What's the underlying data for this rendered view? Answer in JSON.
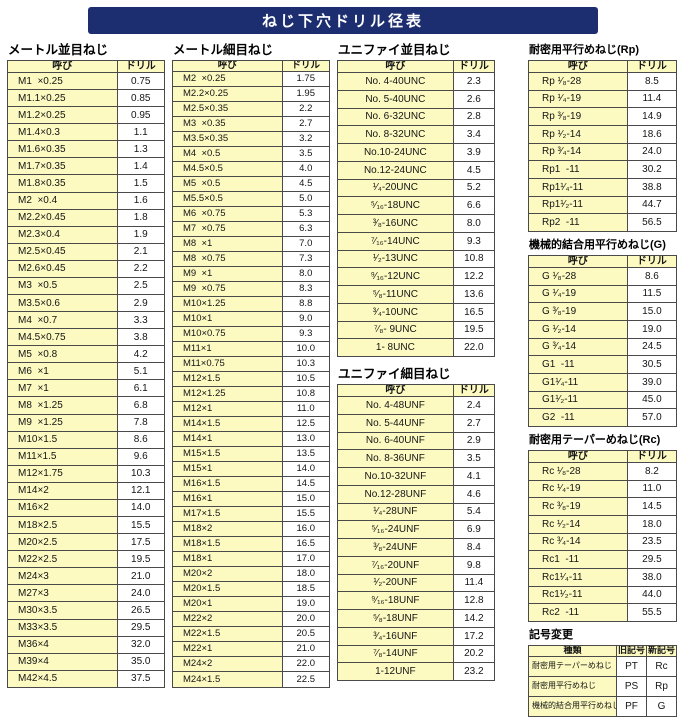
{
  "page_title": "ねじ下穴ドリル径表",
  "colors": {
    "banner_bg": "#1c2e70",
    "banner_text": "#ffffff",
    "cell_yellow": "#fcfac1",
    "border": "#4a4a4a"
  },
  "sections": {
    "metric_coarse": {
      "title": "メートル並目ねじ",
      "headers": [
        "呼び",
        "ドリル"
      ],
      "rows": [
        [
          "M1  ×0.25",
          "0.75"
        ],
        [
          "M1.1×0.25",
          "0.85"
        ],
        [
          "M1.2×0.25",
          "0.95"
        ],
        [
          "M1.4×0.3",
          "1.1"
        ],
        [
          "M1.6×0.35",
          "1.3"
        ],
        [
          "M1.7×0.35",
          "1.4"
        ],
        [
          "M1.8×0.35",
          "1.5"
        ],
        [
          "M2  ×0.4",
          "1.6"
        ],
        [
          "M2.2×0.45",
          "1.8"
        ],
        [
          "M2.3×0.4",
          "1.9"
        ],
        [
          "M2.5×0.45",
          "2.1"
        ],
        [
          "M2.6×0.45",
          "2.2"
        ],
        [
          "M3  ×0.5",
          "2.5"
        ],
        [
          "M3.5×0.6",
          "2.9"
        ],
        [
          "M4  ×0.7",
          "3.3"
        ],
        [
          "M4.5×0.75",
          "3.8"
        ],
        [
          "M5  ×0.8",
          "4.2"
        ],
        [
          "M6  ×1",
          "5.1"
        ],
        [
          "M7  ×1",
          "6.1"
        ],
        [
          "M8  ×1.25",
          "6.8"
        ],
        [
          "M9  ×1.25",
          "7.8"
        ],
        [
          "M10×1.5",
          "8.6"
        ],
        [
          "M11×1.5",
          "9.6"
        ],
        [
          "M12×1.75",
          "10.3"
        ],
        [
          "M14×2",
          "12.1"
        ],
        [
          "M16×2",
          "14.0"
        ],
        [
          "M18×2.5",
          "15.5"
        ],
        [
          "M20×2.5",
          "17.5"
        ],
        [
          "M22×2.5",
          "19.5"
        ],
        [
          "M24×3",
          "21.0"
        ],
        [
          "M27×3",
          "24.0"
        ],
        [
          "M30×3.5",
          "26.5"
        ],
        [
          "M33×3.5",
          "29.5"
        ],
        [
          "M36×4",
          "32.0"
        ],
        [
          "M39×4",
          "35.0"
        ],
        [
          "M42×4.5",
          "37.5"
        ]
      ]
    },
    "metric_fine": {
      "title": "メートル細目ねじ",
      "headers": [
        "呼び",
        "ドリル"
      ],
      "rows": [
        [
          "M2  ×0.25",
          "1.75"
        ],
        [
          "M2.2×0.25",
          "1.95"
        ],
        [
          "M2.5×0.35",
          "2.2"
        ],
        [
          "M3  ×0.35",
          "2.7"
        ],
        [
          "M3.5×0.35",
          "3.2"
        ],
        [
          "M4  ×0.5",
          "3.5"
        ],
        [
          "M4.5×0.5",
          "4.0"
        ],
        [
          "M5  ×0.5",
          "4.5"
        ],
        [
          "M5.5×0.5",
          "5.0"
        ],
        [
          "M6  ×0.75",
          "5.3"
        ],
        [
          "M7  ×0.75",
          "6.3"
        ],
        [
          "M8  ×1",
          "7.0"
        ],
        [
          "M8  ×0.75",
          "7.3"
        ],
        [
          "M9  ×1",
          "8.0"
        ],
        [
          "M9  ×0.75",
          "8.3"
        ],
        [
          "M10×1.25",
          "8.8"
        ],
        [
          "M10×1",
          "9.0"
        ],
        [
          "M10×0.75",
          "9.3"
        ],
        [
          "M11×1",
          "10.0"
        ],
        [
          "M11×0.75",
          "10.3"
        ],
        [
          "M12×1.5",
          "10.5"
        ],
        [
          "M12×1.25",
          "10.8"
        ],
        [
          "M12×1",
          "11.0"
        ],
        [
          "M14×1.5",
          "12.5"
        ],
        [
          "M14×1",
          "13.0"
        ],
        [
          "M15×1.5",
          "13.5"
        ],
        [
          "M15×1",
          "14.0"
        ],
        [
          "M16×1.5",
          "14.5"
        ],
        [
          "M16×1",
          "15.0"
        ],
        [
          "M17×1.5",
          "15.5"
        ],
        [
          "M18×2",
          "16.0"
        ],
        [
          "M18×1.5",
          "16.5"
        ],
        [
          "M18×1",
          "17.0"
        ],
        [
          "M20×2",
          "18.0"
        ],
        [
          "M20×1.5",
          "18.5"
        ],
        [
          "M20×1",
          "19.0"
        ],
        [
          "M22×2",
          "20.0"
        ],
        [
          "M22×1.5",
          "20.5"
        ],
        [
          "M22×1",
          "21.0"
        ],
        [
          "M24×2",
          "22.0"
        ],
        [
          "M24×1.5",
          "22.5"
        ]
      ]
    },
    "unified_coarse": {
      "title": "ユニファイ並目ねじ",
      "headers": [
        "呼び",
        "ドリル"
      ],
      "rows": [
        [
          "No. 4-40UNC",
          "2.3"
        ],
        [
          "No. 5-40UNC",
          "2.6"
        ],
        [
          "No. 6-32UNC",
          "2.8"
        ],
        [
          "No. 8-32UNC",
          "3.4"
        ],
        [
          "No.10-24UNC",
          "3.9"
        ],
        [
          "No.12-24UNC",
          "4.5"
        ],
        [
          "¹⁄₄-20UNC",
          "5.2"
        ],
        [
          "⁵⁄₁₆-18UNC",
          "6.6"
        ],
        [
          "³⁄₈-16UNC",
          "8.0"
        ],
        [
          "⁷⁄₁₆-14UNC",
          "9.3"
        ],
        [
          "¹⁄₂-13UNC",
          "10.8"
        ],
        [
          "⁹⁄₁₆-12UNC",
          "12.2"
        ],
        [
          "⁵⁄₈-11UNC",
          "13.6"
        ],
        [
          "³⁄₄-10UNC",
          "16.5"
        ],
        [
          "⁷⁄₈- 9UNC",
          "19.5"
        ],
        [
          "1- 8UNC",
          "22.0"
        ]
      ]
    },
    "unified_fine": {
      "title": "ユニファイ細目ねじ",
      "headers": [
        "呼び",
        "ドリル"
      ],
      "rows": [
        [
          "No. 4-48UNF",
          "2.4"
        ],
        [
          "No. 5-44UNF",
          "2.7"
        ],
        [
          "No. 6-40UNF",
          "2.9"
        ],
        [
          "No. 8-36UNF",
          "3.5"
        ],
        [
          "No.10-32UNF",
          "4.1"
        ],
        [
          "No.12-28UNF",
          "4.6"
        ],
        [
          "¹⁄₄-28UNF",
          "5.4"
        ],
        [
          "⁵⁄₁₆-24UNF",
          "6.9"
        ],
        [
          "³⁄₈-24UNF",
          "8.4"
        ],
        [
          "⁷⁄₁₆-20UNF",
          "9.8"
        ],
        [
          "¹⁄₂-20UNF",
          "11.4"
        ],
        [
          "⁹⁄₁₆-18UNF",
          "12.8"
        ],
        [
          "⁵⁄₈-18UNF",
          "14.2"
        ],
        [
          "³⁄₄-16UNF",
          "17.2"
        ],
        [
          "⁷⁄₈-14UNF",
          "20.2"
        ],
        [
          "1-12UNF",
          "23.2"
        ]
      ]
    },
    "rp": {
      "title": "耐密用平行めねじ(Rp)",
      "headers": [
        "呼び",
        "ドリル"
      ],
      "rows": [
        [
          "Rp ¹⁄₈-28",
          "8.5"
        ],
        [
          "Rp ¹⁄₄-19",
          "11.4"
        ],
        [
          "Rp ³⁄₈-19",
          "14.9"
        ],
        [
          "Rp ¹⁄₂-14",
          "18.6"
        ],
        [
          "Rp ³⁄₄-14",
          "24.0"
        ],
        [
          "Rp1  -11",
          "30.2"
        ],
        [
          "Rp1¹⁄₄-11",
          "38.8"
        ],
        [
          "Rp1¹⁄₂-11",
          "44.7"
        ],
        [
          "Rp2  -11",
          "56.5"
        ]
      ]
    },
    "g": {
      "title": "機械的結合用平行めねじ(G)",
      "headers": [
        "呼び",
        "ドリル"
      ],
      "rows": [
        [
          "G ¹⁄₈-28",
          "8.6"
        ],
        [
          "G ¹⁄₄-19",
          "11.5"
        ],
        [
          "G ³⁄₈-19",
          "15.0"
        ],
        [
          "G ¹⁄₂-14",
          "19.0"
        ],
        [
          "G ³⁄₄-14",
          "24.5"
        ],
        [
          "G1  -11",
          "30.5"
        ],
        [
          "G1¹⁄₄-11",
          "39.0"
        ],
        [
          "G1¹⁄₂-11",
          "45.0"
        ],
        [
          "G2  -11",
          "57.0"
        ]
      ]
    },
    "rc": {
      "title": "耐密用テーパーめねじ(Rc)",
      "headers": [
        "呼び",
        "ドリル"
      ],
      "rows": [
        [
          "Rc ¹⁄₈-28",
          "8.2"
        ],
        [
          "Rc ¹⁄₄-19",
          "11.0"
        ],
        [
          "Rc ³⁄₈-19",
          "14.5"
        ],
        [
          "Rc ¹⁄₂-14",
          "18.0"
        ],
        [
          "Rc ³⁄₄-14",
          "23.5"
        ],
        [
          "Rc1  -11",
          "29.5"
        ],
        [
          "Rc1¹⁄₄-11",
          "38.0"
        ],
        [
          "Rc1¹⁄₂-11",
          "44.0"
        ],
        [
          "Rc2  -11",
          "55.5"
        ]
      ]
    },
    "symbol_change": {
      "title": "記号変更",
      "headers": [
        "種類",
        "旧記号",
        "新記号"
      ],
      "rows": [
        [
          "耐密用テーパーめねじ",
          "PT",
          "Rc"
        ],
        [
          "耐密用平行めねじ",
          "PS",
          "Rp"
        ],
        [
          "機械的結合用平行めねじ",
          "PF",
          "G"
        ]
      ]
    }
  }
}
